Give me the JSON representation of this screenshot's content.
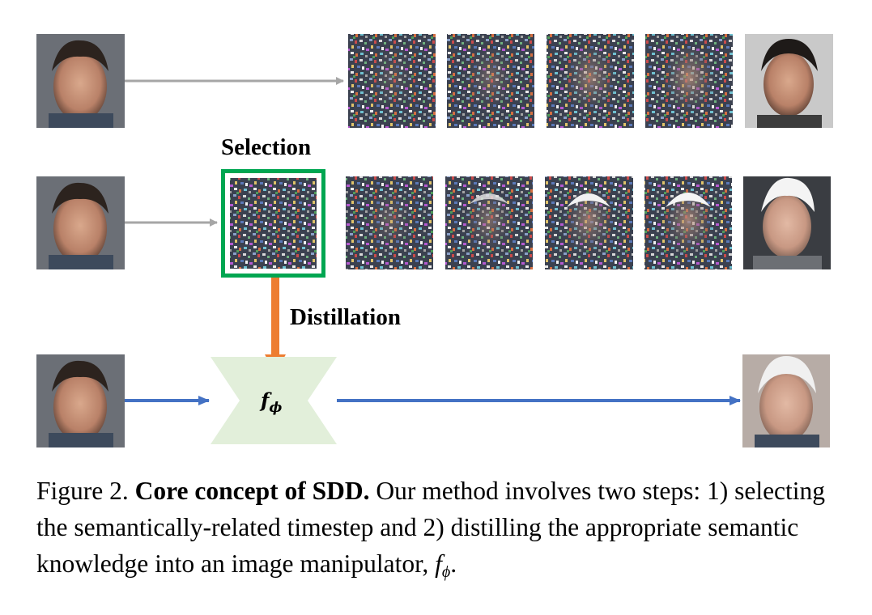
{
  "figure": {
    "labels": {
      "selection": "Selection",
      "distillation": "Distillation"
    },
    "manipulator": {
      "symbol": "f",
      "subscript": "ϕ"
    },
    "caption": {
      "prefix": "Figure 2.",
      "title": "Core concept of SDD.",
      "text_1": "Our method involves two steps: 1) selecting the semantically-related timestep and 2) distilling the appropriate semantic knowledge into an image manipulator,",
      "symbol": "f",
      "subscript": "ϕ",
      "end": "."
    },
    "colors": {
      "gray_arrow": "#a6a6a6",
      "blue_arrow": "#4472c4",
      "orange_arrow": "#ed7d31",
      "selection_box": "#00a651",
      "manipulator_fill": "#e2efda"
    },
    "rows": [
      {
        "name": "row-1",
        "source": "input face",
        "outputs": [
          "noisy step 1",
          "noisy step 2",
          "noisy step 3",
          "noisy step 4",
          "result dark hair"
        ]
      },
      {
        "name": "row-2",
        "source": "input face",
        "selected": "selected timestep",
        "outputs": [
          "noisy step 1",
          "noisy step 2",
          "noisy step 3",
          "noisy step 4",
          "result white hair"
        ]
      },
      {
        "name": "row-3",
        "source": "input face",
        "output": "final white hair"
      }
    ]
  }
}
